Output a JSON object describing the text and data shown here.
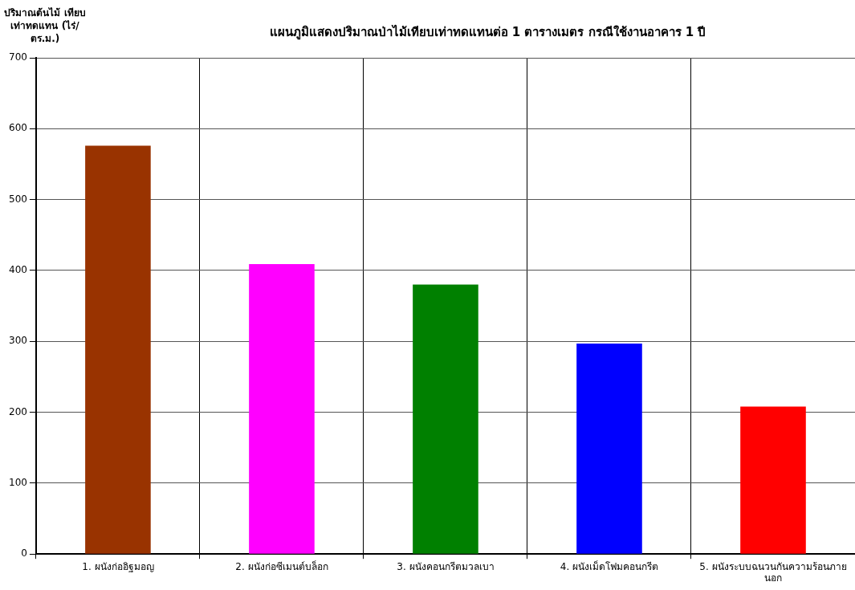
{
  "chart_data": {
    "type": "bar",
    "title": "แผนภูมิแสดงปริมาณป่าไม้เทียบเท่าทดแทนต่อ 1 ตารางเมตร กรณีใช้งานอาคาร 1 ปี",
    "ylabel": "ปริมาณต้นไม้ เทียบเท่าทดแทน (ไร่/ตร.ม.)",
    "categories": [
      "1. ผนังก่ออิฐมอญ",
      "2. ผนังก่อซีเมนต์บล็อก",
      "3. ผนังคอนกรีตมวลเบา",
      "4. ผนังเม็ดโฟมคอนกรีต",
      "5. ผนังระบบฉนวนกันความร้อนภายนอก"
    ],
    "values": [
      576,
      409,
      380,
      297,
      208
    ],
    "colors": [
      "#993300",
      "#ff00ff",
      "#008000",
      "#0000ff",
      "#ff0000"
    ],
    "ylim": [
      0,
      700
    ],
    "yticks": [
      0,
      100,
      200,
      300,
      400,
      500,
      600,
      700
    ],
    "grid": true
  }
}
